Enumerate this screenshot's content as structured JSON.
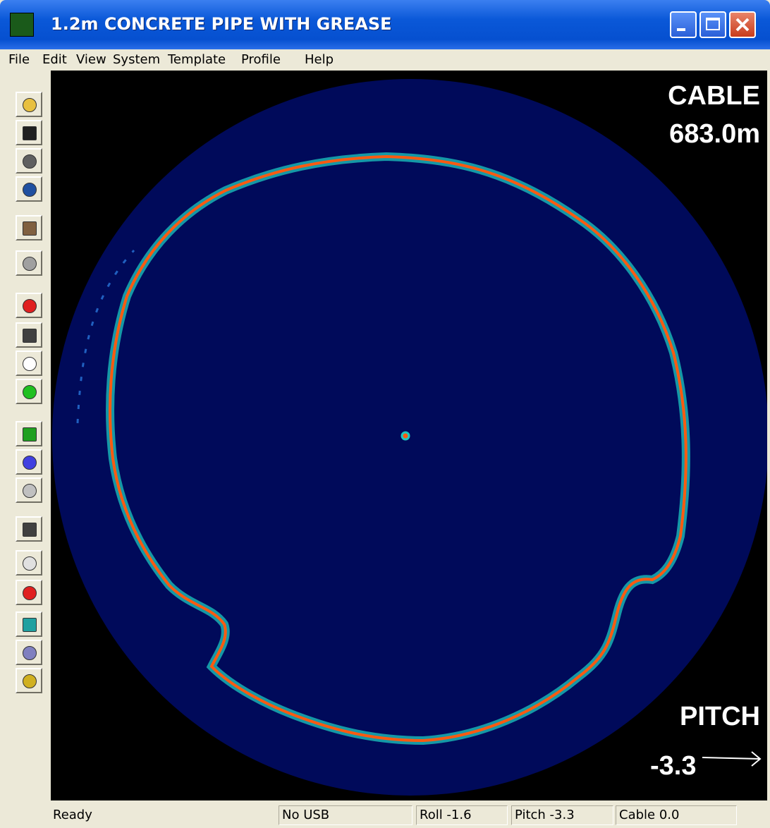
{
  "window": {
    "title": "1.2m CONCRETE PIPE WITH GREASE",
    "menu": [
      "File",
      "Edit",
      "View",
      "System",
      "Template",
      "Profile",
      "Help"
    ]
  },
  "overlay": {
    "cable_label": "CABLE",
    "cable_value": "683.0m",
    "pitch_label": "PITCH",
    "pitch_value": "-3.3"
  },
  "status_bar": [
    "Ready",
    "No USB",
    "Roll -1.6",
    "Pitch -3.3",
    "Cable 0.0"
  ]
}
